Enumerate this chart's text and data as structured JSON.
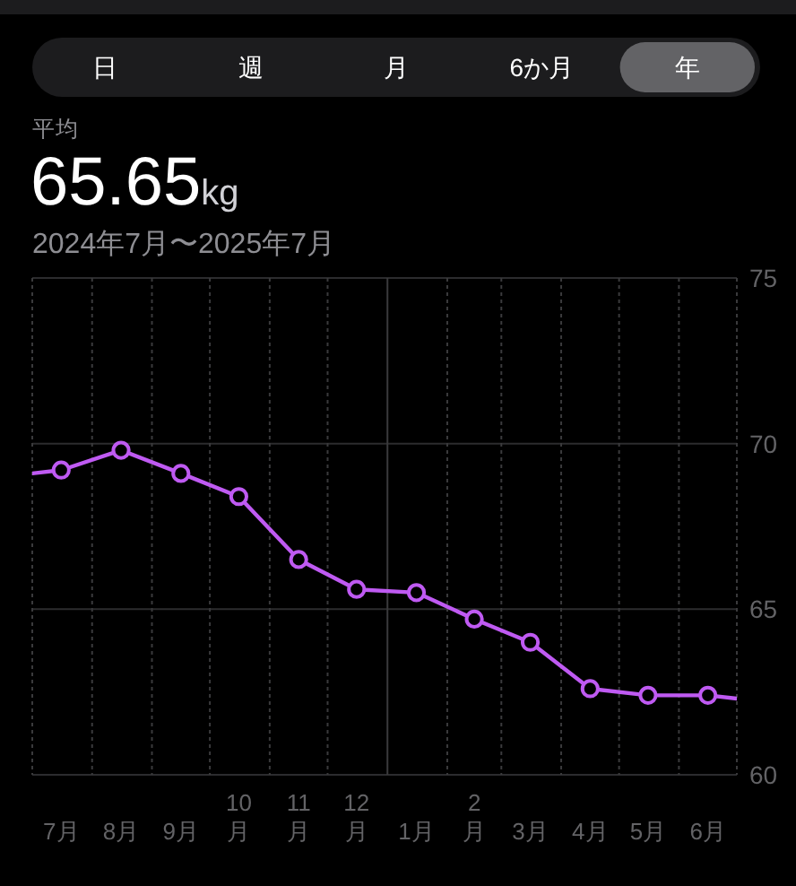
{
  "chart_data": {
    "type": "line",
    "title": "65.65kg",
    "subtitle": "2024年7月〜2025年7月",
    "annotations": [
      "日",
      "週",
      "月",
      "6か月",
      "年",
      "平均"
    ],
    "xlim": [
      "2024-07-01",
      "2025-07-01"
    ],
    "xticks": [
      {
        "value": "2024-07-01",
        "label": null
      },
      {
        "value": "2024-07-16",
        "label": "7月"
      },
      {
        "value": "2024-08-01",
        "label": null
      },
      {
        "value": "2024-08-16",
        "label": "8月"
      },
      {
        "value": "2024-09-01",
        "label": null
      },
      {
        "value": "2024-09-16",
        "label": "9月"
      },
      {
        "value": "2024-10-01",
        "label": null
      },
      {
        "value": "2024-10-16",
        "label": "10\n月"
      },
      {
        "value": "2024-11-01",
        "label": null
      },
      {
        "value": "2024-11-16",
        "label": "11\n月"
      },
      {
        "value": "2024-12-01",
        "label": null
      },
      {
        "value": "2024-12-16",
        "label": "12\n月"
      },
      {
        "value": "2025-01-01",
        "label": null
      },
      {
        "value": "2025-01-16",
        "label": "1月"
      },
      {
        "value": "2025-02-01",
        "label": null
      },
      {
        "value": "2025-02-15",
        "label": "2\n月"
      },
      {
        "value": "2025-03-01",
        "label": null
      },
      {
        "value": "2025-03-16",
        "label": "3月"
      },
      {
        "value": "2025-04-01",
        "label": null
      },
      {
        "value": "2025-04-16",
        "label": "4月"
      },
      {
        "value": "2025-05-01",
        "label": null
      },
      {
        "value": "2025-05-16",
        "label": "5月"
      },
      {
        "value": "2025-06-01",
        "label": null
      },
      {
        "value": "2025-06-16",
        "label": "6月"
      },
      {
        "value": "2025-07-01",
        "label": null
      }
    ],
    "ylim": [
      60,
      75
    ],
    "yticks": [
      60,
      65,
      70,
      75
    ],
    "grid": true,
    "marker": "circle",
    "ref_lines": [
      {
        "axis": "x",
        "value": "2025-01-01",
        "line_style": "solid",
        "color": "#3a3a3c"
      }
    ],
    "series": [
      {
        "marker": "none",
        "color": "#bf5af2",
        "x": [
          "2024-07-01",
          "2024-07-16",
          "2024-08-16",
          "2024-09-16",
          "2024-10-16",
          "2024-11-16",
          "2024-12-16",
          "2025-01-16",
          "2025-02-15",
          "2025-03-16",
          "2025-04-16",
          "2025-05-16",
          "2025-06-16",
          "2025-07-01"
        ],
        "values": [
          69.1,
          69.2,
          69.8,
          69.1,
          68.4,
          66.5,
          65.6,
          65.5,
          64.7,
          64.0,
          62.6,
          62.4,
          62.4,
          62.3
        ]
      },
      {
        "type": "scatter",
        "color": "#bf5af2",
        "x": [
          "2024-07-16",
          "2024-08-16",
          "2024-09-16",
          "2024-10-16",
          "2024-11-16",
          "2024-12-16",
          "2025-01-16",
          "2025-02-15",
          "2025-03-16",
          "2025-04-16",
          "2025-05-16",
          "2025-06-16"
        ],
        "values": [
          69.2,
          69.8,
          69.1,
          68.4,
          66.5,
          65.6,
          65.5,
          64.7,
          64.0,
          62.6,
          62.4,
          62.4
        ]
      }
    ]
  }
}
